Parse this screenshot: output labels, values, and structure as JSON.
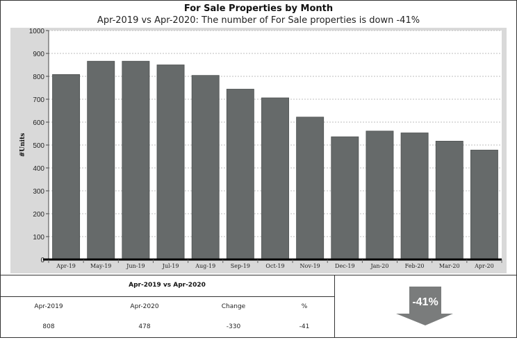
{
  "header": {
    "title": "For Sale Properties by Month",
    "subtitle": "Apr-2019 vs Apr-2020: The number of For Sale properties is down -41%"
  },
  "chart_data": {
    "type": "bar",
    "title": "For Sale Properties by Month",
    "subtitle": "Apr-2019 vs Apr-2020: The number of For Sale properties is down -41%",
    "ylabel": "#Units",
    "xlabel": "",
    "ylim": [
      0,
      1000
    ],
    "yticks": [
      0,
      100,
      200,
      300,
      400,
      500,
      600,
      700,
      800,
      900,
      1000
    ],
    "grid": true,
    "categories": [
      "Apr-19",
      "May-19",
      "Jun-19",
      "Jul-19",
      "Aug-19",
      "Sep-19",
      "Oct-19",
      "Nov-19",
      "Dec-19",
      "Jan-20",
      "Feb-20",
      "Mar-20",
      "Apr-20"
    ],
    "values": [
      808,
      866,
      866,
      850,
      804,
      744,
      706,
      622,
      536,
      561,
      553,
      517,
      478
    ],
    "bar_color": "#666a6a",
    "plot_background": "#ffffff",
    "frame_background": "#d9d9d9"
  },
  "comparison": {
    "title": "Apr-2019 vs Apr-2020",
    "headers": [
      "Apr-2019",
      "Apr-2020",
      "Change",
      "%"
    ],
    "values": [
      "808",
      "478",
      "-330",
      "-41"
    ]
  },
  "indicator": {
    "label": "-41%",
    "icon": "down-arrow-icon",
    "color": "#7a7c7c"
  }
}
